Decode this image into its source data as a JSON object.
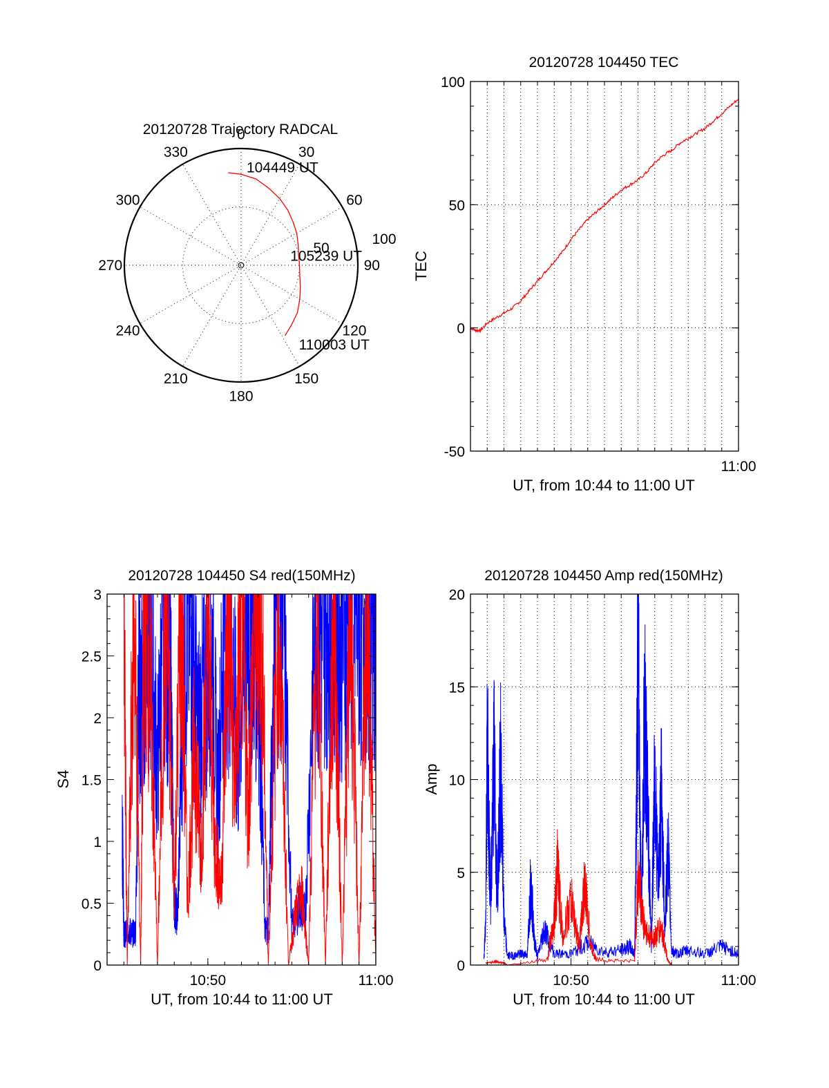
{
  "colors": {
    "red": "#ff0000",
    "blue": "#0000ff",
    "axis": "#000000"
  },
  "chart_data": [
    {
      "id": "polar",
      "type": "polar",
      "title": "20120728 Trajectory RADCAL",
      "azimuth_labels": [
        "0",
        "30",
        "60",
        "90",
        "120",
        "150",
        "180",
        "210",
        "240",
        "270",
        "300",
        "330"
      ],
      "radial_labels": [
        "50",
        "100"
      ],
      "rlim": [
        0,
        100
      ],
      "grid": true,
      "series": [
        {
          "color": "#ff0000",
          "points": [
            [
              -8,
              80
            ],
            [
              0,
              78
            ],
            [
              10,
              75
            ],
            [
              20,
              70
            ],
            [
              30,
              66
            ],
            [
              40,
              62
            ],
            [
              50,
              58
            ],
            [
              60,
              55
            ],
            [
              70,
              52
            ],
            [
              80,
              50
            ],
            [
              90,
              50
            ],
            [
              100,
              51
            ],
            [
              110,
              54
            ],
            [
              120,
              58
            ],
            [
              130,
              63
            ],
            [
              140,
              67
            ],
            [
              148,
              71
            ]
          ]
        }
      ],
      "annotations": [
        {
          "text": "104449 UT",
          "az": 8,
          "r": 85
        },
        {
          "text": "105239 UT",
          "az": 80,
          "r": 50
        },
        {
          "text": "110003 UT",
          "az": 140,
          "r": 88
        }
      ]
    },
    {
      "id": "tec",
      "type": "line",
      "title": "20120728 104450 TEC",
      "xlabel": "UT, from 10:44 to 11:00 UT",
      "ylabel": "TEC",
      "xlim": [
        0,
        16
      ],
      "ylim": [
        -50,
        100
      ],
      "yticks": [
        -50,
        0,
        50,
        100
      ],
      "xticks": [
        {
          "v": 16,
          "label": "11:00"
        }
      ],
      "xgrid_step": 1,
      "grid": true,
      "series": [
        {
          "color": "#ff0000",
          "x": [
            0.0,
            0.3,
            0.6,
            1.0,
            1.5,
            2.0,
            2.5,
            3.0,
            3.5,
            4.0,
            4.5,
            5.0,
            5.5,
            6.0,
            6.5,
            7.0,
            7.5,
            8.0,
            8.5,
            9.0,
            9.5,
            10.0,
            10.5,
            11.0,
            11.5,
            12.0,
            12.5,
            13.0,
            13.5,
            14.0,
            14.5,
            15.0,
            15.5,
            16.0
          ],
          "y": [
            0,
            -1,
            -1,
            2,
            4,
            6,
            8,
            11,
            15,
            19,
            23,
            27,
            31,
            36,
            40,
            44,
            47,
            50,
            53,
            56,
            58,
            60,
            63,
            67,
            70,
            72,
            75,
            77,
            79,
            81,
            84,
            87,
            90,
            93
          ]
        }
      ]
    },
    {
      "id": "s4",
      "type": "line",
      "title": "20120728 104450 S4 red(150MHz)",
      "xlabel": "UT, from 10:44 to 11:00 UT",
      "ylabel": "S4",
      "xlim": [
        0,
        16
      ],
      "ylim": [
        0,
        3
      ],
      "yticks": [
        0,
        0.5,
        1,
        1.5,
        2,
        2.5,
        3
      ],
      "ytick_labels": [
        "0",
        "0.5",
        "1",
        "1.5",
        "2",
        "2.5",
        "3"
      ],
      "xticks": [
        {
          "v": 6,
          "label": "10:50"
        },
        {
          "v": 16,
          "label": "11:00"
        }
      ],
      "grid": false,
      "series": [
        {
          "color": "#0000ff",
          "x": [
            0.9,
            0.95,
            1.0,
            1.1,
            1.3,
            1.5,
            1.7,
            1.9,
            2.0,
            2.3,
            2.6,
            3.0,
            3.4,
            3.8,
            4.0,
            4.2,
            4.6,
            5.0,
            5.4,
            5.8,
            6.2,
            6.6,
            7.0,
            7.4,
            7.8,
            8.2,
            8.6,
            9.0,
            9.4,
            9.6,
            10.0,
            10.5,
            11.0,
            11.5,
            11.8,
            12.4,
            12.8,
            13.2,
            13.6,
            14.0,
            14.5,
            15.0,
            15.4,
            15.8,
            16.0
          ],
          "y": [
            1.1,
            0.8,
            0.25,
            0.25,
            0.28,
            0.25,
            0.28,
            2.5,
            2.0,
            2.8,
            2.6,
            1.6,
            2.9,
            2.2,
            0.5,
            0.4,
            2.6,
            2.8,
            1.9,
            2.2,
            2.7,
            1.4,
            2.9,
            2.6,
            1.6,
            2.9,
            2.8,
            2.5,
            0.28,
            0.3,
            2.9,
            2.9,
            0.3,
            0.5,
            0.4,
            2.9,
            2.7,
            2.9,
            2.8,
            2.6,
            2.9,
            2.8,
            2.9,
            2.7,
            2.9
          ]
        },
        {
          "color": "#ff0000",
          "x": [
            1.0,
            1.2,
            1.6,
            2.0,
            2.2,
            2.6,
            3.0,
            3.5,
            4.0,
            4.4,
            4.8,
            5.2,
            5.6,
            6.0,
            6.4,
            6.8,
            7.2,
            7.6,
            8.0,
            8.4,
            8.8,
            9.2,
            9.6,
            10.2,
            10.8,
            11.2,
            11.6,
            12.0,
            12.5,
            13.0,
            13.5,
            14.0,
            14.5,
            15.0,
            15.5,
            16.0
          ],
          "y": [
            3.0,
            0.0,
            3.0,
            0.0,
            3.0,
            2.2,
            0.0,
            3.0,
            0.6,
            3.0,
            0.5,
            1.8,
            0.9,
            2.8,
            1.0,
            0.6,
            3.0,
            1.4,
            3.0,
            1.2,
            3.0,
            2.8,
            0.0,
            3.0,
            0.0,
            0.4,
            0.6,
            0.0,
            3.0,
            0.0,
            3.0,
            0.0,
            3.0,
            0.0,
            3.0,
            0.0
          ]
        }
      ]
    },
    {
      "id": "amp",
      "type": "line",
      "title": "20120728 104450 Amp red(150MHz)",
      "xlabel": "UT, from 10:44 to 11:00 UT",
      "ylabel": "Amp",
      "xlim": [
        0,
        16
      ],
      "ylim": [
        0,
        20
      ],
      "yticks": [
        0,
        5,
        10,
        15,
        20
      ],
      "xticks": [
        {
          "v": 6,
          "label": "10:50"
        },
        {
          "v": 16,
          "label": "11:00"
        }
      ],
      "xgrid_step": 1,
      "grid": true,
      "series": [
        {
          "color": "#0000ff",
          "x": [
            0.8,
            0.9,
            1.0,
            1.2,
            1.4,
            1.6,
            1.8,
            2.0,
            2.2,
            2.6,
            3.0,
            3.4,
            3.6,
            3.8,
            4.0,
            4.4,
            5.0,
            6.0,
            7.0,
            8.0,
            9.0,
            9.5,
            9.8,
            10.0,
            10.2,
            10.4,
            10.6,
            10.8,
            11.0,
            11.2,
            11.4,
            11.6,
            11.8,
            12.0,
            12.3,
            13.0,
            14.0,
            15.0,
            16.0
          ],
          "y": [
            0.3,
            2.2,
            12.5,
            3.0,
            11.5,
            3.5,
            11.0,
            2.5,
            0.5,
            0.5,
            0.6,
            0.6,
            4.6,
            1.5,
            0.4,
            2.0,
            0.6,
            0.6,
            1.2,
            0.7,
            0.8,
            1.0,
            0.6,
            17.5,
            3.0,
            14.0,
            8.0,
            1.0,
            11.0,
            4.0,
            9.5,
            2.0,
            6.5,
            0.8,
            0.6,
            0.8,
            0.6,
            1.0,
            0.6
          ]
        },
        {
          "color": "#ff0000",
          "x": [
            0.9,
            1.5,
            2.0,
            2.2,
            4.6,
            5.0,
            5.2,
            5.5,
            6.0,
            6.5,
            6.8,
            7.2,
            7.5,
            9.8,
            10.0,
            10.3,
            10.6,
            11.0,
            11.4,
            11.8,
            12.0
          ],
          "y": [
            0.1,
            0.2,
            0.1,
            0.0,
            0.3,
            2.5,
            5.2,
            1.5,
            3.5,
            1.0,
            4.4,
            1.0,
            0.3,
            0.2,
            4.8,
            2.5,
            1.5,
            1.5,
            2.0,
            0.2,
            0.0
          ]
        }
      ]
    }
  ]
}
